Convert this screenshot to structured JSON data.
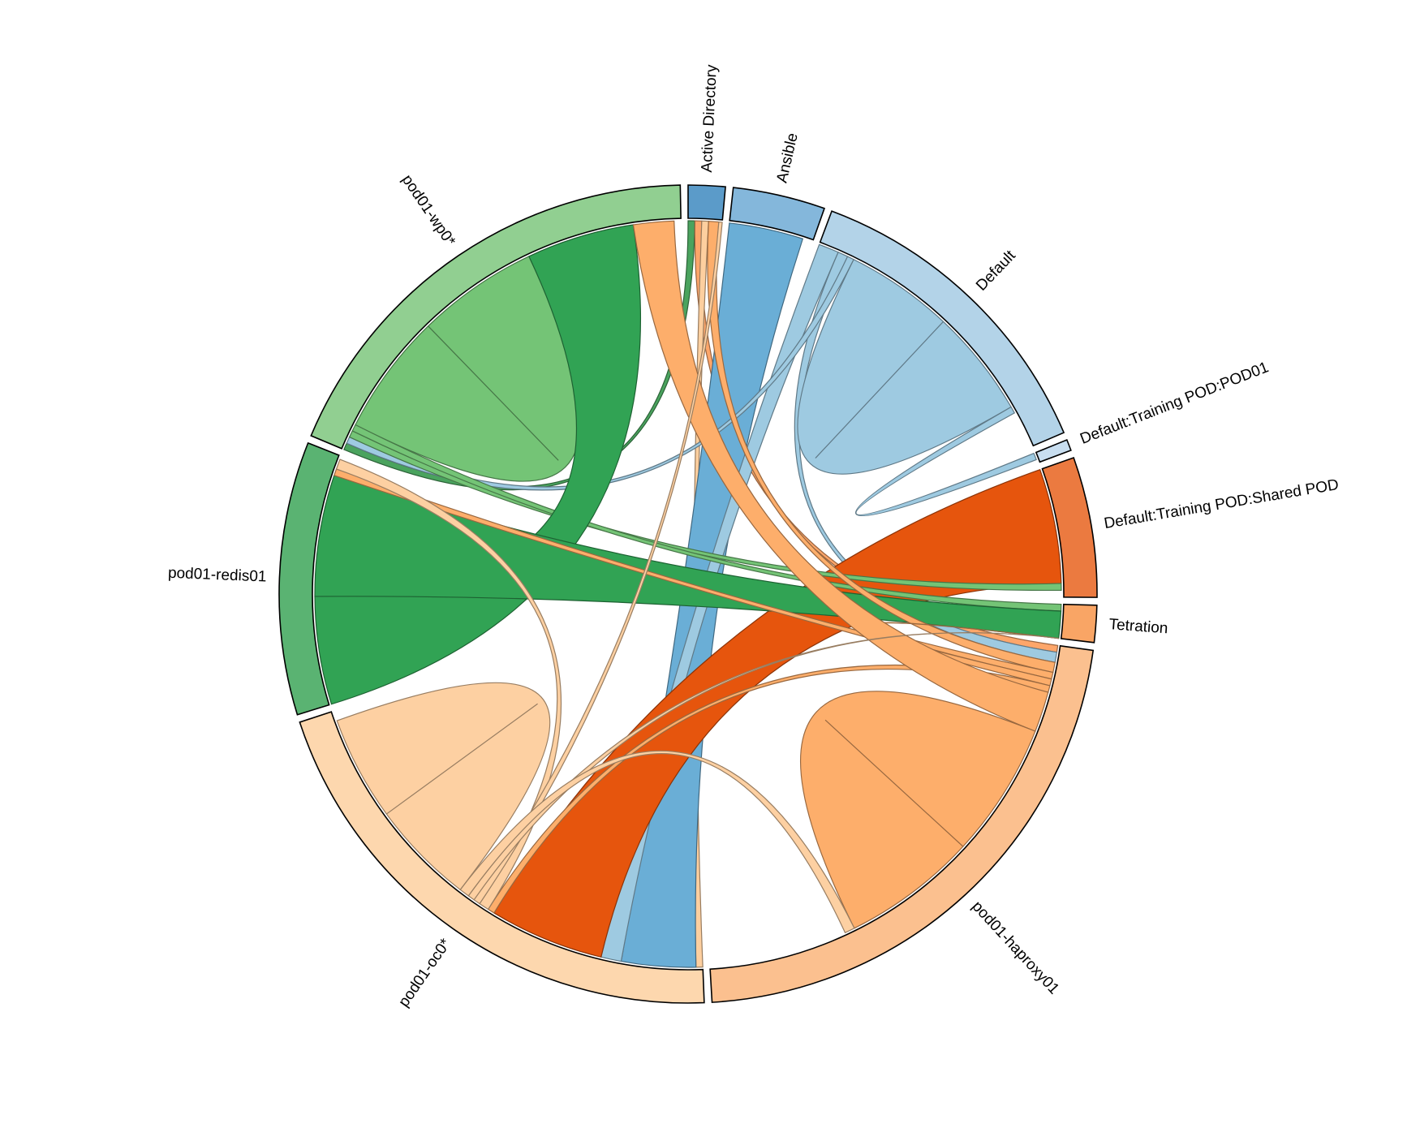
{
  "chart_data": {
    "type": "chord",
    "title": "",
    "groups": [
      {
        "name": "Active Directory",
        "value": 10,
        "color": "#5b9bc9"
      },
      {
        "name": "Ansible",
        "value": 25,
        "color": "#84b7db"
      },
      {
        "name": "Default",
        "value": 88,
        "color": "#b3d3e8"
      },
      {
        "name": "Default:Training POD:POD01",
        "value": 3,
        "color": "#c8def0"
      },
      {
        "name": "Default:Training POD:Shared POD",
        "value": 38,
        "color": "#eb7a40"
      },
      {
        "name": "Tetration",
        "value": 10,
        "color": "#f9a565"
      },
      {
        "name": "pod01-haproxy01",
        "value": 150,
        "color": "#fbc08f"
      },
      {
        "name": "pod01-oc0*",
        "value": 141,
        "color": "#fdd7ae"
      },
      {
        "name": "pod01-redis01",
        "value": 74,
        "color": "#5ab372"
      },
      {
        "name": "pod01-wp0*",
        "value": 126,
        "color": "#91cf91"
      }
    ],
    "flows": [
      {
        "source": "Active Directory",
        "target": "pod01-wp0*",
        "value": 2,
        "color": "#4aa35e"
      },
      {
        "source": "Active Directory",
        "target": "pod01-haproxy01",
        "value": 2,
        "color": "#fda66a"
      },
      {
        "source": "Active Directory",
        "target": "pod01-oc0*",
        "value": 2,
        "color": "#fdcf9f"
      },
      {
        "source": "Ansible",
        "target": "pod01-oc0*",
        "value": 22,
        "color": "#6aaed6"
      },
      {
        "source": "Default",
        "target": "pod01-oc0*",
        "value": 6,
        "color": "#9ecae1"
      },
      {
        "source": "Default",
        "target": "pod01-haproxy01",
        "value": 3,
        "color": "#9ecae1"
      },
      {
        "source": "Default",
        "target": "pod01-wp0*",
        "value": 2,
        "color": "#9ecae1"
      },
      {
        "source": "Default",
        "target": "Default",
        "value": 64,
        "color": "#9ecae1",
        "self": true
      },
      {
        "source": "Default:Training POD:POD01",
        "target": "Default",
        "value": 2,
        "color": "#9ecae1"
      },
      {
        "source": "Default:Training POD:Shared POD",
        "target": "pod01-oc0*",
        "value": 34,
        "color": "#e6550d"
      },
      {
        "source": "pod01-wp0*",
        "target": "Default:Training POD:Shared POD",
        "value": 2,
        "color": "#74c476"
      },
      {
        "source": "pod01-wp0*",
        "target": "Tetration",
        "value": 2,
        "color": "#74c476"
      },
      {
        "source": "pod01-wp0*",
        "target": "pod01-wp0*",
        "value": 72,
        "color": "#74c476",
        "self": true
      },
      {
        "source": "pod01-redis01",
        "target": "pod01-wp0*",
        "value": 32,
        "color": "#31a354"
      },
      {
        "source": "pod01-redis01",
        "target": "Tetration",
        "value": 36,
        "color": "#31a354"
      },
      {
        "source": "pod01-haproxy01",
        "target": "Active Directory",
        "value": 3,
        "color": "#fdae6b"
      },
      {
        "source": "pod01-haproxy01",
        "target": "Tetration",
        "value": 2,
        "color": "#fdae6b"
      },
      {
        "source": "pod01-haproxy01",
        "target": "pod01-redis01",
        "value": 2,
        "color": "#fdae6b"
      },
      {
        "source": "pod01-haproxy01",
        "target": "pod01-oc0*",
        "value": 2,
        "color": "#fdae6b"
      },
      {
        "source": "pod01-haproxy01",
        "target": "pod01-wp0*",
        "value": 12,
        "color": "#fdae6b"
      },
      {
        "source": "pod01-haproxy01",
        "target": "pod01-haproxy01",
        "value": 80,
        "color": "#fdae6b",
        "self": true
      },
      {
        "source": "pod01-oc0*",
        "target": "pod01-redis01",
        "value": 3,
        "color": "#fdd0a2"
      },
      {
        "source": "pod01-oc0*",
        "target": "Active Directory",
        "value": 2,
        "color": "#fdd0a2"
      },
      {
        "source": "pod01-oc0*",
        "target": "Tetration",
        "value": 2,
        "color": "#fdd0a2"
      },
      {
        "source": "pod01-oc0*",
        "target": "pod01-haproxy01",
        "value": 3,
        "color": "#fdd0a2"
      },
      {
        "source": "pod01-oc0*",
        "target": "pod01-oc0*",
        "value": 62,
        "color": "#fdd0a2",
        "self": true
      }
    ]
  }
}
